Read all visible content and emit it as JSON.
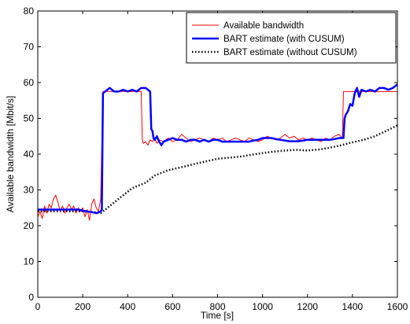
{
  "chart_data": {
    "type": "line",
    "title": "",
    "xlabel": "Time [s]",
    "ylabel": "Available bandwidth [Mbit/s]",
    "xlim": [
      0,
      1600
    ],
    "ylim": [
      0,
      80
    ],
    "xticks": [
      0,
      200,
      400,
      600,
      800,
      1000,
      1200,
      1400,
      1600
    ],
    "yticks": [
      0,
      10,
      20,
      30,
      40,
      50,
      60,
      70,
      80
    ],
    "grid": false,
    "legend_position": "top-right",
    "series": [
      {
        "name": "Available bandwidth",
        "color": "#ff0000",
        "style": "solid-thin",
        "x": [
          0,
          10,
          20,
          30,
          40,
          50,
          60,
          70,
          80,
          90,
          100,
          110,
          120,
          130,
          140,
          150,
          160,
          170,
          180,
          190,
          200,
          210,
          220,
          230,
          240,
          250,
          260,
          270,
          280,
          290,
          300,
          320,
          340,
          360,
          380,
          400,
          420,
          440,
          460,
          465,
          470,
          480,
          490,
          500,
          510,
          520,
          530,
          540,
          560,
          580,
          600,
          620,
          640,
          660,
          680,
          700,
          720,
          740,
          760,
          780,
          800,
          820,
          840,
          860,
          880,
          900,
          920,
          940,
          960,
          980,
          1000,
          1020,
          1040,
          1060,
          1080,
          1100,
          1120,
          1140,
          1160,
          1180,
          1200,
          1220,
          1240,
          1260,
          1280,
          1300,
          1320,
          1340,
          1355,
          1360,
          1365,
          1380,
          1400,
          1420,
          1440,
          1460,
          1480,
          1500,
          1520,
          1540,
          1560,
          1580,
          1600
        ],
        "y": [
          22.5,
          24.0,
          22.0,
          25.5,
          23.5,
          26.0,
          25.0,
          27.5,
          28.5,
          26.5,
          24.0,
          25.5,
          23.5,
          25.0,
          26.0,
          24.5,
          25.5,
          23.5,
          25.0,
          24.0,
          25.0,
          22.5,
          24.5,
          21.5,
          26.0,
          27.5,
          25.0,
          24.0,
          27.5,
          57.5,
          57.5,
          57.5,
          57.5,
          57.5,
          57.5,
          57.5,
          57.5,
          57.5,
          57.5,
          44.0,
          43.0,
          43.5,
          42.5,
          44.0,
          43.5,
          44.5,
          43.0,
          44.0,
          43.5,
          44.5,
          43.5,
          44.0,
          45.5,
          44.5,
          43.5,
          44.0,
          44.5,
          44.0,
          43.5,
          44.5,
          44.0,
          44.5,
          43.5,
          44.0,
          44.5,
          44.0,
          43.5,
          44.5,
          44.0,
          43.5,
          44.0,
          45.0,
          44.5,
          44.0,
          44.5,
          45.5,
          44.5,
          45.0,
          44.0,
          44.5,
          44.0,
          44.5,
          44.0,
          43.5,
          44.5,
          44.0,
          45.0,
          45.5,
          44.5,
          57.5,
          57.5,
          57.5,
          57.5,
          57.5,
          57.5,
          57.5,
          57.5,
          57.5,
          57.5,
          57.5,
          57.5,
          57.5,
          57.5
        ]
      },
      {
        "name": "BART estimate (with CUSUM)",
        "color": "#0000ff",
        "style": "solid-thick",
        "x": [
          0,
          20,
          40,
          60,
          80,
          100,
          120,
          140,
          160,
          180,
          200,
          220,
          240,
          260,
          270,
          280,
          285,
          290,
          300,
          320,
          340,
          360,
          380,
          400,
          420,
          440,
          460,
          480,
          500,
          505,
          510,
          515,
          520,
          530,
          540,
          550,
          560,
          580,
          600,
          620,
          640,
          660,
          680,
          700,
          720,
          740,
          760,
          780,
          800,
          820,
          840,
          860,
          880,
          900,
          920,
          940,
          960,
          980,
          1000,
          1020,
          1040,
          1060,
          1080,
          1100,
          1120,
          1140,
          1160,
          1180,
          1200,
          1220,
          1240,
          1260,
          1280,
          1300,
          1320,
          1340,
          1360,
          1365,
          1370,
          1380,
          1390,
          1400,
          1410,
          1420,
          1430,
          1440,
          1460,
          1480,
          1500,
          1520,
          1540,
          1560,
          1580,
          1600
        ],
        "y": [
          24.5,
          24.5,
          24.5,
          24.5,
          24.5,
          24.5,
          24.5,
          24.5,
          24.5,
          24.5,
          24.2,
          24.0,
          23.8,
          23.5,
          23.7,
          24.0,
          24.5,
          57.0,
          57.5,
          58.5,
          57.5,
          57.5,
          58.0,
          57.5,
          58.0,
          57.5,
          58.5,
          58.5,
          57.5,
          47.0,
          46.5,
          44.5,
          44.0,
          45.0,
          43.5,
          42.5,
          43.5,
          44.0,
          44.5,
          44.0,
          44.0,
          43.5,
          44.0,
          44.0,
          43.5,
          44.0,
          43.5,
          44.0,
          44.0,
          43.5,
          43.5,
          43.5,
          43.5,
          43.5,
          43.5,
          43.5,
          43.8,
          44.0,
          44.5,
          44.5,
          44.5,
          44.2,
          44.0,
          43.8,
          43.6,
          43.6,
          43.6,
          43.8,
          44.0,
          44.0,
          44.0,
          44.0,
          44.0,
          44.0,
          44.2,
          44.5,
          44.5,
          50.0,
          51.0,
          52.0,
          54.0,
          53.5,
          57.0,
          58.5,
          56.0,
          58.0,
          57.5,
          58.0,
          57.5,
          58.5,
          58.5,
          58.0,
          58.5,
          59.5
        ]
      },
      {
        "name": "BART estimate (without CUSUM)",
        "color": "#000000",
        "style": "dotted-thick",
        "x": [
          0,
          50,
          100,
          150,
          200,
          250,
          280,
          300,
          320,
          340,
          360,
          380,
          400,
          420,
          440,
          460,
          480,
          500,
          520,
          540,
          560,
          580,
          600,
          650,
          700,
          750,
          800,
          850,
          900,
          950,
          1000,
          1050,
          1100,
          1150,
          1200,
          1250,
          1300,
          1350,
          1400,
          1450,
          1500,
          1550,
          1600
        ],
        "y": [
          24.0,
          24.0,
          24.0,
          24.0,
          24.0,
          23.8,
          23.5,
          24.5,
          25.5,
          26.5,
          27.5,
          28.5,
          29.5,
          30.5,
          31.0,
          31.5,
          32.0,
          33.0,
          34.0,
          34.5,
          35.0,
          35.5,
          35.8,
          36.5,
          37.3,
          38.0,
          38.7,
          39.0,
          39.3,
          39.8,
          40.3,
          40.7,
          41.0,
          41.2,
          41.0,
          41.3,
          41.8,
          42.5,
          43.3,
          44.0,
          45.0,
          46.5,
          48.0
        ]
      }
    ]
  }
}
